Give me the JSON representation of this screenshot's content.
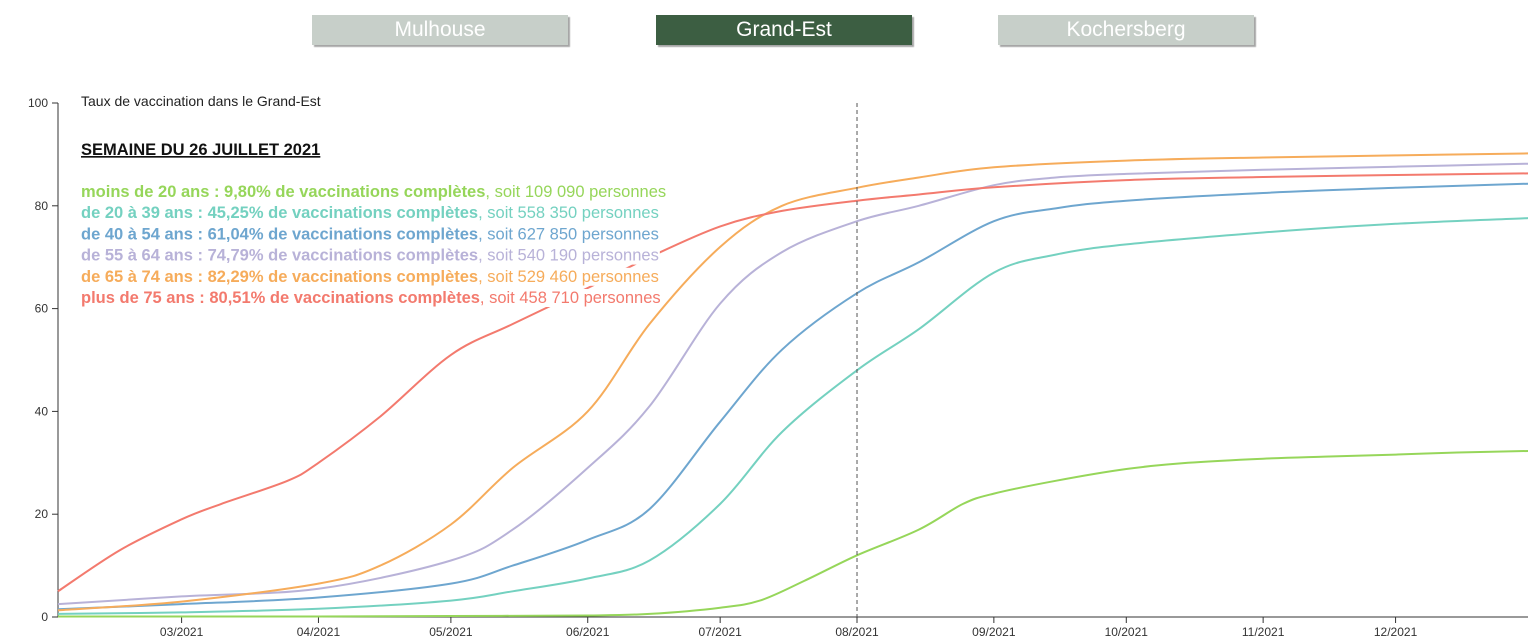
{
  "tabs": [
    {
      "label": "Mulhouse",
      "active": false
    },
    {
      "label": "Grand-Est",
      "active": true
    },
    {
      "label": "Kochersberg",
      "active": false
    }
  ],
  "colors": {
    "tab_active": "#3c5e42",
    "tab_inactive": "#c7cfc9",
    "marker_line": "#555555"
  },
  "chart_data": {
    "type": "line",
    "title": "Taux de vaccination dans le Grand-Est",
    "subtitle": "SEMAINE DU 26 JUILLET 2021",
    "xlabel": "",
    "ylabel": "",
    "ylim": [
      0,
      100
    ],
    "yticks": [
      0,
      20,
      40,
      60,
      80,
      100
    ],
    "xlim": [
      "2021-02-01",
      "2021-12-31"
    ],
    "xticks": [
      {
        "date": "2021-03-01",
        "label": "03/2021"
      },
      {
        "date": "2021-04-01",
        "label": "04/2021"
      },
      {
        "date": "2021-05-01",
        "label": "05/2021"
      },
      {
        "date": "2021-06-01",
        "label": "06/2021"
      },
      {
        "date": "2021-07-01",
        "label": "07/2021"
      },
      {
        "date": "2021-08-01",
        "label": "08/2021"
      },
      {
        "date": "2021-09-01",
        "label": "09/2021"
      },
      {
        "date": "2021-10-01",
        "label": "10/2021"
      },
      {
        "date": "2021-11-01",
        "label": "11/2021"
      },
      {
        "date": "2021-12-01",
        "label": "12/2021"
      }
    ],
    "marker_date": "2021-08-01",
    "grid": false,
    "legend_position": "top-left",
    "series": [
      {
        "name": "moins de 20 ans",
        "color": "#96d65a",
        "legend_bold": "moins de 20 ans : 9,80% de vaccinations complètes",
        "legend_rest": ", soit 109 090 personnes",
        "points": [
          [
            "2021-02-01",
            0.1
          ],
          [
            "2021-03-01",
            0.1
          ],
          [
            "2021-04-01",
            0.1
          ],
          [
            "2021-05-01",
            0.2
          ],
          [
            "2021-06-01",
            0.3
          ],
          [
            "2021-06-15",
            0.6
          ],
          [
            "2021-07-01",
            1.8
          ],
          [
            "2021-07-10",
            3.2
          ],
          [
            "2021-07-20",
            7
          ],
          [
            "2021-08-01",
            12
          ],
          [
            "2021-08-15",
            17
          ],
          [
            "2021-08-25",
            22
          ],
          [
            "2021-09-01",
            24
          ],
          [
            "2021-09-15",
            26.5
          ],
          [
            "2021-10-01",
            28.8
          ],
          [
            "2021-10-15",
            30
          ],
          [
            "2021-11-01",
            30.8
          ],
          [
            "2021-11-15",
            31.2
          ],
          [
            "2021-12-01",
            31.6
          ],
          [
            "2021-12-15",
            32
          ],
          [
            "2021-12-31",
            32.3
          ]
        ]
      },
      {
        "name": "de 20 à 39 ans",
        "color": "#74d1c0",
        "legend_bold": "de 20 à 39 ans : 45,25% de vaccinations complètes",
        "legend_rest": ", soit 558 350 personnes",
        "points": [
          [
            "2021-02-01",
            0.6
          ],
          [
            "2021-03-01",
            0.9
          ],
          [
            "2021-04-01",
            1.6
          ],
          [
            "2021-05-01",
            3.2
          ],
          [
            "2021-05-15",
            5
          ],
          [
            "2021-06-01",
            7.5
          ],
          [
            "2021-06-15",
            11
          ],
          [
            "2021-07-01",
            22
          ],
          [
            "2021-07-15",
            36
          ],
          [
            "2021-08-01",
            48
          ],
          [
            "2021-08-15",
            56
          ],
          [
            "2021-09-01",
            67
          ],
          [
            "2021-09-15",
            70.5
          ],
          [
            "2021-10-01",
            72.5
          ],
          [
            "2021-11-01",
            74.8
          ],
          [
            "2021-12-01",
            76.5
          ],
          [
            "2021-12-31",
            77.6
          ]
        ]
      },
      {
        "name": "de 40 à 54 ans",
        "color": "#6ea6cf",
        "legend_bold": "de 40 à 54 ans : 61,04% de vaccinations complètes",
        "legend_rest": ", soit 627 850 personnes",
        "points": [
          [
            "2021-02-01",
            1.5
          ],
          [
            "2021-03-01",
            2.5
          ],
          [
            "2021-04-01",
            3.8
          ],
          [
            "2021-05-01",
            6.5
          ],
          [
            "2021-05-15",
            10
          ],
          [
            "2021-06-01",
            15
          ],
          [
            "2021-06-15",
            21
          ],
          [
            "2021-07-01",
            38
          ],
          [
            "2021-07-15",
            52
          ],
          [
            "2021-08-01",
            63
          ],
          [
            "2021-08-15",
            69
          ],
          [
            "2021-09-01",
            77
          ],
          [
            "2021-09-15",
            79.5
          ],
          [
            "2021-10-01",
            81
          ],
          [
            "2021-11-01",
            82.5
          ],
          [
            "2021-12-01",
            83.5
          ],
          [
            "2021-12-31",
            84.3
          ]
        ]
      },
      {
        "name": "de 55 à 64 ans",
        "color": "#b8b2d8",
        "legend_bold": "de 55 à 64 ans : 74,79% de vaccinations complètes",
        "legend_rest": ", soit 540 190 personnes",
        "points": [
          [
            "2021-02-01",
            2.5
          ],
          [
            "2021-03-01",
            4
          ],
          [
            "2021-04-01",
            5.5
          ],
          [
            "2021-05-01",
            11
          ],
          [
            "2021-05-15",
            17
          ],
          [
            "2021-06-01",
            29
          ],
          [
            "2021-06-15",
            41
          ],
          [
            "2021-07-01",
            61
          ],
          [
            "2021-07-15",
            71
          ],
          [
            "2021-08-01",
            77
          ],
          [
            "2021-08-15",
            80
          ],
          [
            "2021-09-01",
            84
          ],
          [
            "2021-09-15",
            85.5
          ],
          [
            "2021-10-01",
            86.2
          ],
          [
            "2021-11-01",
            87
          ],
          [
            "2021-12-01",
            87.6
          ],
          [
            "2021-12-31",
            88.2
          ]
        ]
      },
      {
        "name": "de 65 à 74 ans",
        "color": "#f6ac5b",
        "legend_bold": "de 65 à 74 ans : 82,29% de vaccinations complètes",
        "legend_rest": ", soit 529 460 personnes",
        "points": [
          [
            "2021-02-01",
            1.3
          ],
          [
            "2021-03-01",
            3
          ],
          [
            "2021-04-01",
            6.5
          ],
          [
            "2021-04-15",
            10
          ],
          [
            "2021-05-01",
            18
          ],
          [
            "2021-05-15",
            29
          ],
          [
            "2021-06-01",
            40
          ],
          [
            "2021-06-15",
            57
          ],
          [
            "2021-07-01",
            72
          ],
          [
            "2021-07-15",
            80
          ],
          [
            "2021-08-01",
            83.5
          ],
          [
            "2021-08-15",
            85.5
          ],
          [
            "2021-09-01",
            87.5
          ],
          [
            "2021-10-01",
            88.8
          ],
          [
            "2021-11-01",
            89.4
          ],
          [
            "2021-12-01",
            89.8
          ],
          [
            "2021-12-31",
            90.2
          ]
        ]
      },
      {
        "name": "plus de 75 ans",
        "color": "#f37a6e",
        "legend_bold": "plus de 75 ans : 80,51% de vaccinations complètes",
        "legend_rest": ", soit 458 710 personnes",
        "points": [
          [
            "2021-02-01",
            5
          ],
          [
            "2021-02-15",
            13
          ],
          [
            "2021-03-01",
            19
          ],
          [
            "2021-03-10",
            22
          ],
          [
            "2021-03-25",
            26.5
          ],
          [
            "2021-04-01",
            30
          ],
          [
            "2021-04-15",
            39
          ],
          [
            "2021-05-01",
            51
          ],
          [
            "2021-05-15",
            57
          ],
          [
            "2021-06-01",
            64
          ],
          [
            "2021-06-15",
            70
          ],
          [
            "2021-07-01",
            76
          ],
          [
            "2021-07-15",
            79
          ],
          [
            "2021-08-01",
            81
          ],
          [
            "2021-08-15",
            82.2
          ],
          [
            "2021-09-01",
            83.6
          ],
          [
            "2021-10-01",
            85
          ],
          [
            "2021-11-01",
            85.6
          ],
          [
            "2021-12-01",
            86
          ],
          [
            "2021-12-31",
            86.3
          ]
        ]
      }
    ]
  }
}
